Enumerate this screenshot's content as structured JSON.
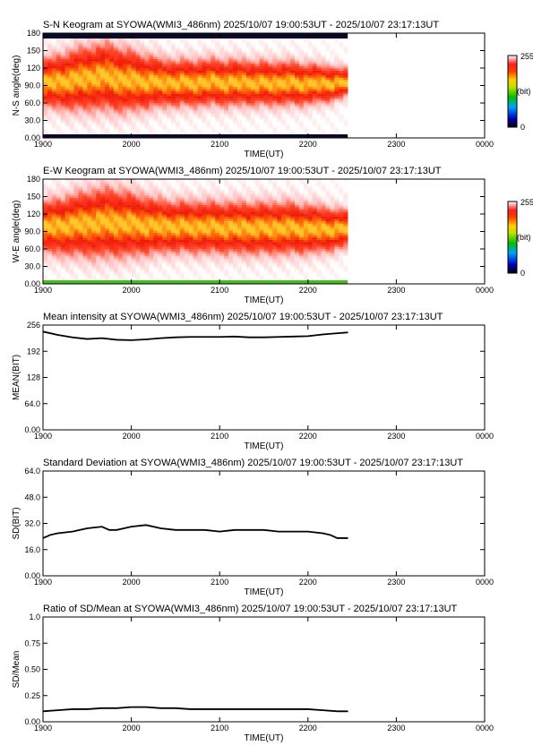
{
  "colors": {
    "frame": "#000000",
    "line": "#000000",
    "background": "#ffffff"
  },
  "time_ticks": [
    "1900",
    "2000",
    "2100",
    "2200",
    "2300",
    "0000"
  ],
  "time_range": [
    0,
    300
  ],
  "data_end": 207,
  "panels": [
    {
      "id": "sn",
      "type": "heatmap",
      "title": "S-N Keogram at SYOWA(WMI3_486nm)   2025/10/07 19:00:53UT - 2025/10/07 23:17:13UT",
      "xlabel": "TIME(UT)",
      "ylabel": "N-S angle(deg)",
      "yticks": [
        "0.00",
        "30.0",
        "60.0",
        "90.0",
        "120",
        "150",
        "180"
      ],
      "ylim": [
        0,
        180
      ],
      "band_center": [
        95,
        97,
        100,
        104,
        106,
        100,
        98,
        96,
        95,
        94,
        95,
        96,
        95,
        95,
        94,
        94,
        94,
        93,
        93,
        94,
        94
      ],
      "band_halfwidth": [
        38,
        42,
        48,
        50,
        52,
        50,
        45,
        40,
        36,
        36,
        36,
        36,
        36,
        35,
        34,
        34,
        34,
        32,
        30,
        26,
        20
      ],
      "colorbar": {
        "max": "255",
        "mid": "(bit)",
        "min": "0"
      }
    },
    {
      "id": "ew",
      "type": "heatmap",
      "title": "E-W Keogram at SYOWA(WMI3_486nm)   2025/10/07 19:00:53UT - 2025/10/07 23:17:13UT",
      "xlabel": "TIME(UT)",
      "ylabel": "W-E angle(deg)",
      "yticks": [
        "0.00",
        "30.0",
        "60.0",
        "90.0",
        "120",
        "150",
        "180"
      ],
      "ylim": [
        0,
        180
      ],
      "band_center": [
        98,
        99,
        102,
        104,
        106,
        104,
        102,
        100,
        99,
        98,
        98,
        97,
        97,
        96,
        96,
        96,
        96,
        95,
        94,
        94,
        94
      ],
      "band_halfwidth": [
        40,
        44,
        48,
        52,
        54,
        52,
        48,
        44,
        40,
        40,
        40,
        40,
        40,
        40,
        40,
        40,
        40,
        38,
        36,
        32,
        28
      ],
      "colorbar": {
        "max": "255",
        "mid": "(bit)",
        "min": "0"
      }
    },
    {
      "id": "mean",
      "type": "line",
      "title": "Mean intensity at SYOWA(WMI3_486nm)   2025/10/07 19:00:53UT - 2025/10/07 23:17:13UT",
      "xlabel": "TIME(UT)",
      "ylabel": "MEAN(BIT)",
      "yticks": [
        "0.00",
        "64.0",
        "128",
        "192",
        "256"
      ],
      "ylim": [
        0,
        256
      ]
    },
    {
      "id": "sd",
      "type": "line",
      "title": "Standard Deviation at SYOWA(WMI3_486nm)   2025/10/07 19:00:53UT - 2025/10/07 23:17:13UT",
      "xlabel": "TIME(UT)",
      "ylabel": "SD(BIT)",
      "yticks": [
        "0.00",
        "16.0",
        "32.0",
        "48.0",
        "64.0"
      ],
      "ylim": [
        0,
        64
      ]
    },
    {
      "id": "ratio",
      "type": "line",
      "title": "Ratio of SD/Mean at SYOWA(WMI3_486nm)   2025/10/07 19:00:53UT - 2025/10/07 23:17:13UT",
      "xlabel": "TIME(UT)",
      "ylabel": "SD/Mean",
      "yticks": [
        "0.00",
        "0.25",
        "0.50",
        "0.75",
        "1.0"
      ],
      "ylim": [
        0,
        1
      ]
    }
  ],
  "chart_data": [
    {
      "type": "heatmap",
      "panel": "sn",
      "title": "S-N Keogram at SYOWA(WMI3_486nm)   2025/10/07 19:00:53UT - 2025/10/07 23:17:13UT",
      "xlabel": "TIME(UT)",
      "ylabel": "N-S angle(deg)",
      "ylim": [
        0,
        180
      ]
    },
    {
      "type": "heatmap",
      "panel": "ew",
      "title": "E-W Keogram at SYOWA(WMI3_486nm)   2025/10/07 19:00:53UT - 2025/10/07 23:17:13UT",
      "xlabel": "TIME(UT)",
      "ylabel": "W-E angle(deg)",
      "ylim": [
        0,
        180
      ]
    },
    {
      "type": "line",
      "panel": "mean",
      "title": "Mean intensity at SYOWA(WMI3_486nm)   2025/10/07 19:00:53UT - 2025/10/07 23:17:13UT",
      "xlabel": "TIME(UT)",
      "ylabel": "MEAN(BIT)",
      "ylim": [
        0,
        256
      ],
      "x": [
        0,
        10,
        20,
        30,
        40,
        50,
        60,
        70,
        80,
        90,
        100,
        110,
        120,
        130,
        140,
        150,
        160,
        170,
        180,
        190,
        200,
        207
      ],
      "values": [
        240,
        232,
        226,
        222,
        224,
        220,
        219,
        221,
        224,
        226,
        227,
        227,
        227,
        228,
        226,
        226,
        227,
        228,
        229,
        233,
        236,
        238
      ]
    },
    {
      "type": "line",
      "panel": "sd",
      "title": "Standard Deviation at SYOWA(WMI3_486nm)   2025/10/07 19:00:53UT - 2025/10/07 23:17:13UT",
      "xlabel": "TIME(UT)",
      "ylabel": "SD(BIT)",
      "ylim": [
        0,
        64
      ],
      "x": [
        0,
        5,
        10,
        20,
        30,
        40,
        45,
        50,
        55,
        60,
        70,
        80,
        90,
        100,
        110,
        120,
        130,
        140,
        150,
        160,
        170,
        180,
        190,
        195,
        200,
        207
      ],
      "values": [
        23,
        25,
        26,
        27,
        29,
        30,
        28,
        28,
        29,
        30,
        31,
        29,
        28,
        28,
        28,
        27,
        28,
        28,
        28,
        27,
        27,
        27,
        26,
        25,
        23,
        23
      ]
    },
    {
      "type": "line",
      "panel": "ratio",
      "title": "Ratio of SD/Mean at SYOWA(WMI3_486nm)   2025/10/07 19:00:53UT - 2025/10/07 23:17:13UT",
      "xlabel": "TIME(UT)",
      "ylabel": "SD/Mean",
      "ylim": [
        0,
        1
      ],
      "x": [
        0,
        10,
        20,
        30,
        40,
        50,
        60,
        70,
        80,
        90,
        100,
        110,
        120,
        130,
        140,
        150,
        160,
        170,
        180,
        190,
        200,
        207
      ],
      "values": [
        0.1,
        0.11,
        0.12,
        0.12,
        0.13,
        0.13,
        0.14,
        0.14,
        0.13,
        0.13,
        0.12,
        0.12,
        0.12,
        0.12,
        0.12,
        0.12,
        0.12,
        0.12,
        0.12,
        0.11,
        0.1,
        0.1
      ]
    }
  ]
}
